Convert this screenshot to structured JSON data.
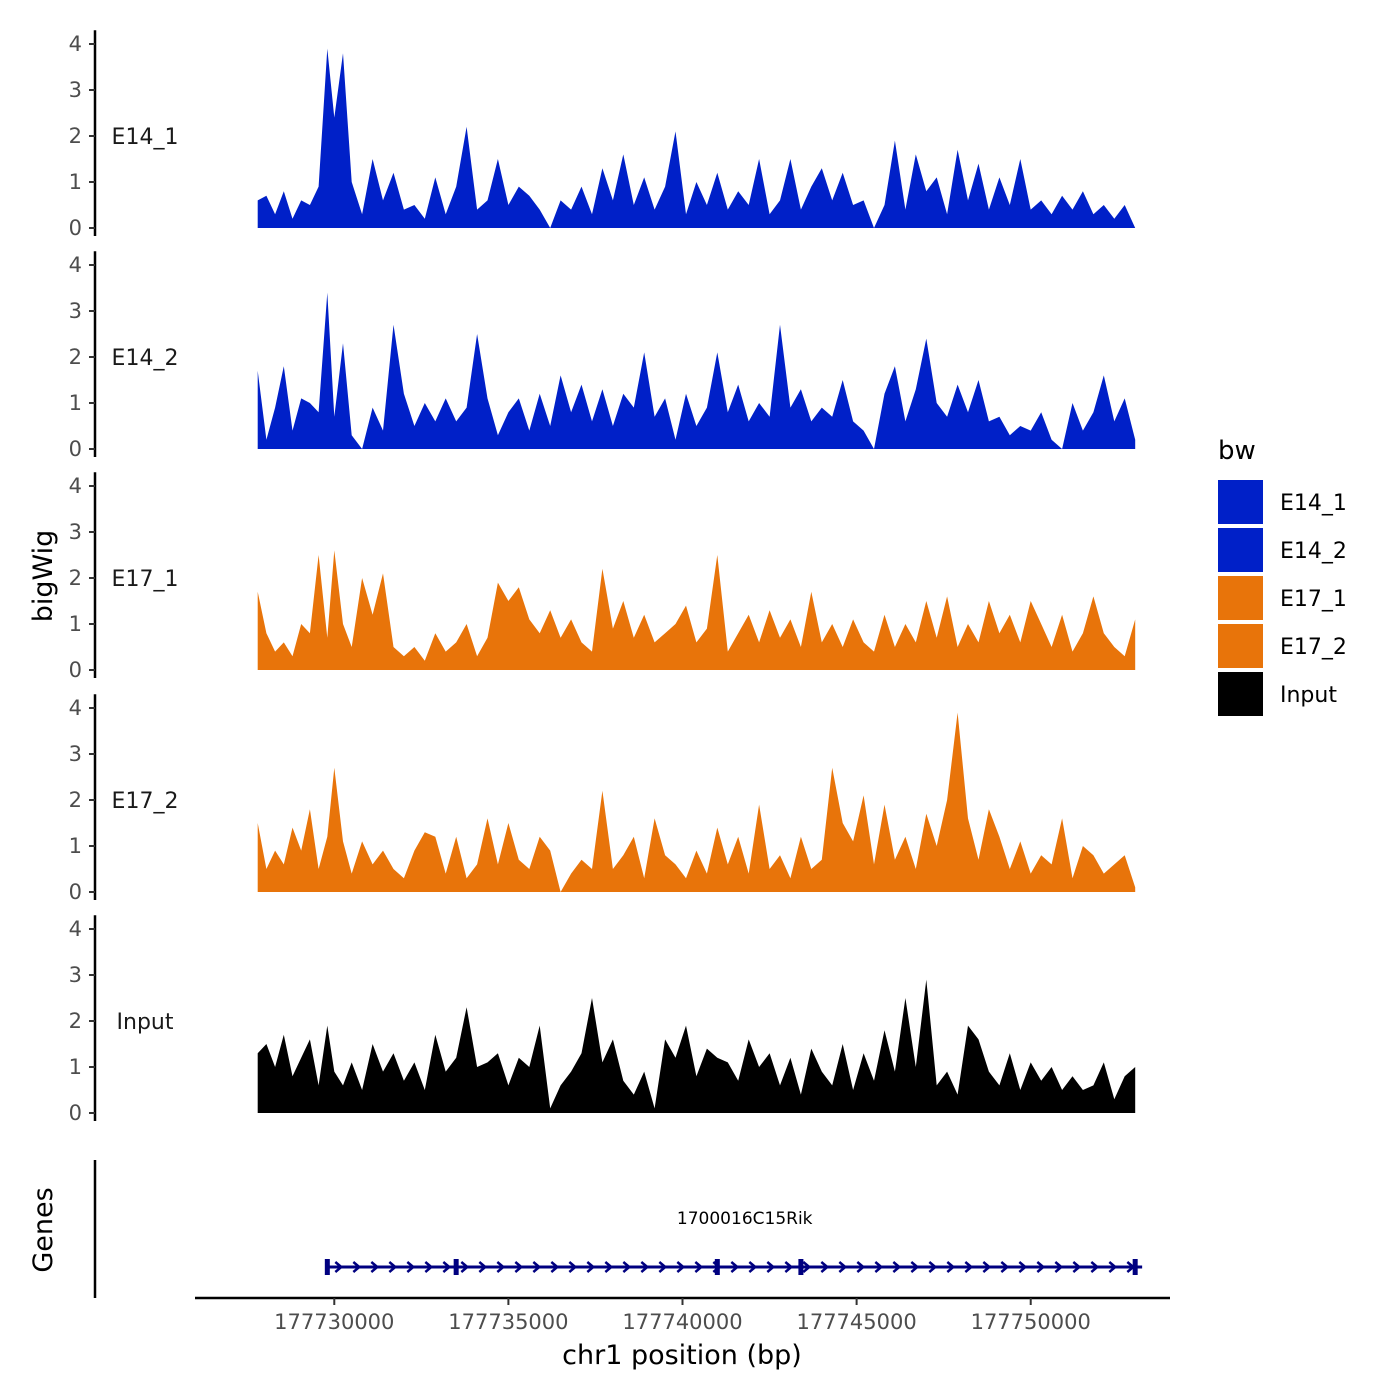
{
  "chart_data": {
    "type": "area",
    "title": "",
    "xlabel": "chr1 position (bp)",
    "ylabel": "bigWig",
    "genes_label": "Genes",
    "xlim": [
      177726000,
      177754000
    ],
    "x_ticks": [
      177730000,
      177735000,
      177740000,
      177745000,
      177750000
    ],
    "x_tick_labels": [
      "177730000",
      "177735000",
      "177740000",
      "177745000",
      "177750000"
    ],
    "ylim": [
      0,
      4.3
    ],
    "y_ticks": [
      0,
      1,
      2,
      3,
      4
    ],
    "y_tick_labels": [
      "0",
      "1",
      "2",
      "3",
      "4"
    ],
    "legend": {
      "title": "bw",
      "position": "right",
      "entries": [
        {
          "label": "E14_1",
          "color": "#0020C8"
        },
        {
          "label": "E14_2",
          "color": "#0020C8"
        },
        {
          "label": "E17_1",
          "color": "#E8740A"
        },
        {
          "label": "E17_2",
          "color": "#E8740A"
        },
        {
          "label": "Input",
          "color": "#000000"
        }
      ]
    },
    "series": [
      {
        "name": "E14_1",
        "color": "#0020C8",
        "x": [
          177727800,
          177728050,
          177728300,
          177728550,
          177728800,
          177729050,
          177729300,
          177729550,
          177729800,
          177730000,
          177730250,
          177730500,
          177730800,
          177731100,
          177731400,
          177731700,
          177732000,
          177732300,
          177732600,
          177732900,
          177733200,
          177733500,
          177733800,
          177734100,
          177734400,
          177734700,
          177735000,
          177735300,
          177735600,
          177735900,
          177736200,
          177736500,
          177736800,
          177737100,
          177737400,
          177737700,
          177738000,
          177738300,
          177738600,
          177738900,
          177739200,
          177739500,
          177739800,
          177740100,
          177740400,
          177740700,
          177741000,
          177741300,
          177741600,
          177741900,
          177742200,
          177742500,
          177742800,
          177743100,
          177743400,
          177743700,
          177744000,
          177744300,
          177744600,
          177744900,
          177745200,
          177745500,
          177745800,
          177746100,
          177746400,
          177746700,
          177747000,
          177747300,
          177747600,
          177747900,
          177748200,
          177748500,
          177748800,
          177749100,
          177749400,
          177749700,
          177750000,
          177750300,
          177750600,
          177750900,
          177751200,
          177751500,
          177751800,
          177752100,
          177752400,
          177752700,
          177753000
        ],
        "values": [
          0.6,
          0.7,
          0.3,
          0.8,
          0.2,
          0.6,
          0.5,
          0.9,
          3.9,
          2.4,
          3.8,
          1.0,
          0.3,
          1.5,
          0.6,
          1.2,
          0.4,
          0.5,
          0.2,
          1.1,
          0.3,
          0.9,
          2.2,
          0.4,
          0.6,
          1.5,
          0.5,
          0.9,
          0.7,
          0.4,
          0.0,
          0.6,
          0.4,
          0.9,
          0.3,
          1.3,
          0.6,
          1.6,
          0.5,
          1.1,
          0.4,
          0.9,
          2.1,
          0.3,
          1.0,
          0.5,
          1.2,
          0.4,
          0.8,
          0.5,
          1.5,
          0.3,
          0.6,
          1.5,
          0.4,
          0.9,
          1.3,
          0.6,
          1.2,
          0.5,
          0.6,
          0.0,
          0.5,
          1.9,
          0.4,
          1.6,
          0.8,
          1.1,
          0.3,
          1.7,
          0.6,
          1.4,
          0.4,
          1.1,
          0.5,
          1.5,
          0.4,
          0.6,
          0.3,
          0.7,
          0.4,
          0.8,
          0.3,
          0.5,
          0.2,
          0.5,
          0.0
        ]
      },
      {
        "name": "E14_2",
        "color": "#0020C8",
        "x": [
          177727800,
          177728050,
          177728300,
          177728550,
          177728800,
          177729050,
          177729300,
          177729550,
          177729800,
          177730000,
          177730250,
          177730500,
          177730800,
          177731100,
          177731400,
          177731700,
          177732000,
          177732300,
          177732600,
          177732900,
          177733200,
          177733500,
          177733800,
          177734100,
          177734400,
          177734700,
          177735000,
          177735300,
          177735600,
          177735900,
          177736200,
          177736500,
          177736800,
          177737100,
          177737400,
          177737700,
          177738000,
          177738300,
          177738600,
          177738900,
          177739200,
          177739500,
          177739800,
          177740100,
          177740400,
          177740700,
          177741000,
          177741300,
          177741600,
          177741900,
          177742200,
          177742500,
          177742800,
          177743100,
          177743400,
          177743700,
          177744000,
          177744300,
          177744600,
          177744900,
          177745200,
          177745500,
          177745800,
          177746100,
          177746400,
          177746700,
          177747000,
          177747300,
          177747600,
          177747900,
          177748200,
          177748500,
          177748800,
          177749100,
          177749400,
          177749700,
          177750000,
          177750300,
          177750600,
          177750900,
          177751200,
          177751500,
          177751800,
          177752100,
          177752400,
          177752700,
          177753000
        ],
        "values": [
          1.7,
          0.2,
          0.9,
          1.8,
          0.4,
          1.1,
          1.0,
          0.8,
          3.4,
          0.7,
          2.3,
          0.3,
          0.0,
          0.9,
          0.4,
          2.7,
          1.2,
          0.5,
          1.0,
          0.6,
          1.1,
          0.6,
          0.9,
          2.5,
          1.1,
          0.3,
          0.8,
          1.1,
          0.4,
          1.2,
          0.5,
          1.6,
          0.8,
          1.4,
          0.6,
          1.3,
          0.5,
          1.2,
          0.9,
          2.1,
          0.7,
          1.1,
          0.2,
          1.2,
          0.5,
          0.9,
          2.1,
          0.8,
          1.4,
          0.6,
          1.0,
          0.7,
          2.7,
          0.9,
          1.3,
          0.6,
          0.9,
          0.7,
          1.5,
          0.6,
          0.4,
          0.0,
          1.2,
          1.8,
          0.6,
          1.3,
          2.4,
          1.0,
          0.7,
          1.4,
          0.8,
          1.5,
          0.6,
          0.7,
          0.3,
          0.5,
          0.4,
          0.8,
          0.2,
          0.0,
          1.0,
          0.4,
          0.8,
          1.6,
          0.6,
          1.1,
          0.2
        ]
      },
      {
        "name": "E17_1",
        "color": "#E8740A",
        "x": [
          177727800,
          177728050,
          177728300,
          177728550,
          177728800,
          177729050,
          177729300,
          177729550,
          177729800,
          177730000,
          177730250,
          177730500,
          177730800,
          177731100,
          177731400,
          177731700,
          177732000,
          177732300,
          177732600,
          177732900,
          177733200,
          177733500,
          177733800,
          177734100,
          177734400,
          177734700,
          177735000,
          177735300,
          177735600,
          177735900,
          177736200,
          177736500,
          177736800,
          177737100,
          177737400,
          177737700,
          177738000,
          177738300,
          177738600,
          177738900,
          177739200,
          177739500,
          177739800,
          177740100,
          177740400,
          177740700,
          177741000,
          177741300,
          177741600,
          177741900,
          177742200,
          177742500,
          177742800,
          177743100,
          177743400,
          177743700,
          177744000,
          177744300,
          177744600,
          177744900,
          177745200,
          177745500,
          177745800,
          177746100,
          177746400,
          177746700,
          177747000,
          177747300,
          177747600,
          177747900,
          177748200,
          177748500,
          177748800,
          177749100,
          177749400,
          177749700,
          177750000,
          177750300,
          177750600,
          177750900,
          177751200,
          177751500,
          177751800,
          177752100,
          177752400,
          177752700,
          177753000
        ],
        "values": [
          1.7,
          0.8,
          0.4,
          0.6,
          0.3,
          1.0,
          0.8,
          2.5,
          0.7,
          2.6,
          1.0,
          0.5,
          2.0,
          1.2,
          2.1,
          0.5,
          0.3,
          0.5,
          0.2,
          0.8,
          0.4,
          0.6,
          1.0,
          0.3,
          0.7,
          1.9,
          1.5,
          1.8,
          1.1,
          0.8,
          1.3,
          0.7,
          1.1,
          0.6,
          0.4,
          2.2,
          0.9,
          1.5,
          0.7,
          1.2,
          0.6,
          0.8,
          1.0,
          1.4,
          0.6,
          0.9,
          2.5,
          0.4,
          0.8,
          1.2,
          0.6,
          1.3,
          0.7,
          1.1,
          0.5,
          1.7,
          0.6,
          1.0,
          0.5,
          1.1,
          0.6,
          0.4,
          1.2,
          0.5,
          1.0,
          0.6,
          1.5,
          0.7,
          1.6,
          0.5,
          1.0,
          0.6,
          1.5,
          0.8,
          1.2,
          0.6,
          1.5,
          1.0,
          0.5,
          1.2,
          0.4,
          0.8,
          1.6,
          0.8,
          0.5,
          0.3,
          1.1
        ]
      },
      {
        "name": "E17_2",
        "color": "#E8740A",
        "x": [
          177727800,
          177728050,
          177728300,
          177728550,
          177728800,
          177729050,
          177729300,
          177729550,
          177729800,
          177730000,
          177730250,
          177730500,
          177730800,
          177731100,
          177731400,
          177731700,
          177732000,
          177732300,
          177732600,
          177732900,
          177733200,
          177733500,
          177733800,
          177734100,
          177734400,
          177734700,
          177735000,
          177735300,
          177735600,
          177735900,
          177736200,
          177736500,
          177736800,
          177737100,
          177737400,
          177737700,
          177738000,
          177738300,
          177738600,
          177738900,
          177739200,
          177739500,
          177739800,
          177740100,
          177740400,
          177740700,
          177741000,
          177741300,
          177741600,
          177741900,
          177742200,
          177742500,
          177742800,
          177743100,
          177743400,
          177743700,
          177744000,
          177744300,
          177744600,
          177744900,
          177745200,
          177745500,
          177745800,
          177746100,
          177746400,
          177746700,
          177747000,
          177747300,
          177747600,
          177747900,
          177748200,
          177748500,
          177748800,
          177749100,
          177749400,
          177749700,
          177750000,
          177750300,
          177750600,
          177750900,
          177751200,
          177751500,
          177751800,
          177752100,
          177752400,
          177752700,
          177753000
        ],
        "values": [
          1.5,
          0.5,
          0.9,
          0.6,
          1.4,
          0.9,
          1.8,
          0.5,
          1.2,
          2.7,
          1.1,
          0.4,
          1.1,
          0.6,
          0.9,
          0.5,
          0.3,
          0.9,
          1.3,
          1.2,
          0.4,
          1.2,
          0.3,
          0.6,
          1.6,
          0.6,
          1.5,
          0.7,
          0.5,
          1.2,
          0.9,
          0.0,
          0.4,
          0.7,
          0.5,
          2.2,
          0.5,
          0.8,
          1.2,
          0.3,
          1.6,
          0.8,
          0.6,
          0.3,
          0.9,
          0.4,
          1.4,
          0.6,
          1.2,
          0.4,
          1.9,
          0.5,
          0.8,
          0.3,
          1.2,
          0.5,
          0.7,
          2.7,
          1.5,
          1.1,
          2.1,
          0.6,
          1.9,
          0.7,
          1.2,
          0.5,
          1.7,
          1.0,
          2.0,
          3.9,
          1.6,
          0.7,
          1.8,
          1.2,
          0.5,
          1.1,
          0.4,
          0.8,
          0.6,
          1.6,
          0.3,
          1.0,
          0.8,
          0.4,
          0.6,
          0.8,
          0.1
        ]
      },
      {
        "name": "Input",
        "color": "#000000",
        "x": [
          177727800,
          177728050,
          177728300,
          177728550,
          177728800,
          177729050,
          177729300,
          177729550,
          177729800,
          177730000,
          177730250,
          177730500,
          177730800,
          177731100,
          177731400,
          177731700,
          177732000,
          177732300,
          177732600,
          177732900,
          177733200,
          177733500,
          177733800,
          177734100,
          177734400,
          177734700,
          177735000,
          177735300,
          177735600,
          177735900,
          177736200,
          177736500,
          177736800,
          177737100,
          177737400,
          177737700,
          177738000,
          177738300,
          177738600,
          177738900,
          177739200,
          177739500,
          177739800,
          177740100,
          177740400,
          177740700,
          177741000,
          177741300,
          177741600,
          177741900,
          177742200,
          177742500,
          177742800,
          177743100,
          177743400,
          177743700,
          177744000,
          177744300,
          177744600,
          177744900,
          177745200,
          177745500,
          177745800,
          177746100,
          177746400,
          177746700,
          177747000,
          177747300,
          177747600,
          177747900,
          177748200,
          177748500,
          177748800,
          177749100,
          177749400,
          177749700,
          177750000,
          177750300,
          177750600,
          177750900,
          177751200,
          177751500,
          177751800,
          177752100,
          177752400,
          177752700,
          177753000
        ],
        "values": [
          1.3,
          1.5,
          1.0,
          1.7,
          0.8,
          1.2,
          1.6,
          0.6,
          1.9,
          0.9,
          0.6,
          1.1,
          0.5,
          1.5,
          0.9,
          1.3,
          0.7,
          1.1,
          0.5,
          1.7,
          0.9,
          1.2,
          2.3,
          1.0,
          1.1,
          1.3,
          0.6,
          1.2,
          1.0,
          1.9,
          0.1,
          0.6,
          0.9,
          1.3,
          2.5,
          1.1,
          1.6,
          0.7,
          0.4,
          0.9,
          0.1,
          1.6,
          1.2,
          1.9,
          0.8,
          1.4,
          1.2,
          1.1,
          0.7,
          1.6,
          1.0,
          1.3,
          0.6,
          1.2,
          0.4,
          1.4,
          0.9,
          0.6,
          1.5,
          0.5,
          1.3,
          0.7,
          1.8,
          0.9,
          2.5,
          1.0,
          2.9,
          0.6,
          0.9,
          0.4,
          1.9,
          1.6,
          0.9,
          0.6,
          1.3,
          0.5,
          1.1,
          0.7,
          1.0,
          0.5,
          0.8,
          0.5,
          0.6,
          1.1,
          0.3,
          0.8,
          1.0
        ]
      }
    ],
    "genes": [
      {
        "name": "1700016C15Rik",
        "start": 177729800,
        "end": 177753200,
        "strand": "+",
        "color": "#000080",
        "exons": [
          177729800,
          177733500,
          177741000,
          177743400,
          177753000
        ]
      }
    ]
  }
}
